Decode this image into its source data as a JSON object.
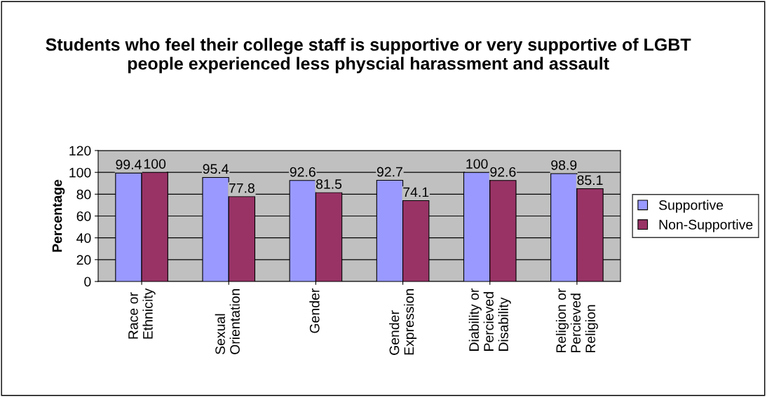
{
  "chart_data": {
    "type": "bar",
    "title": "Students who feel their college staff is supportive or very supportive of LGBT people experienced less physcial harassment and assault",
    "ylabel": "Percentage",
    "categories": [
      "Race or\nEthnicity",
      "Sexual\nOrientation",
      "Gender",
      "Gender\nExpression",
      "Diability or\nPercieved\nDisability",
      "Religion or\nPercieved\nReligion"
    ],
    "series": [
      {
        "name": "Supportive",
        "color": "#9999ff",
        "values": [
          99.4,
          95.4,
          92.6,
          92.7,
          100,
          98.9
        ]
      },
      {
        "name": "Non-Supportive",
        "color": "#993366",
        "values": [
          100,
          77.8,
          81.5,
          74.1,
          92.6,
          85.1
        ]
      }
    ],
    "ylim": [
      0,
      120
    ],
    "yticks": [
      0,
      20,
      40,
      60,
      80,
      100,
      120
    ],
    "grid": "y",
    "legend": "right",
    "data_labels": true
  }
}
